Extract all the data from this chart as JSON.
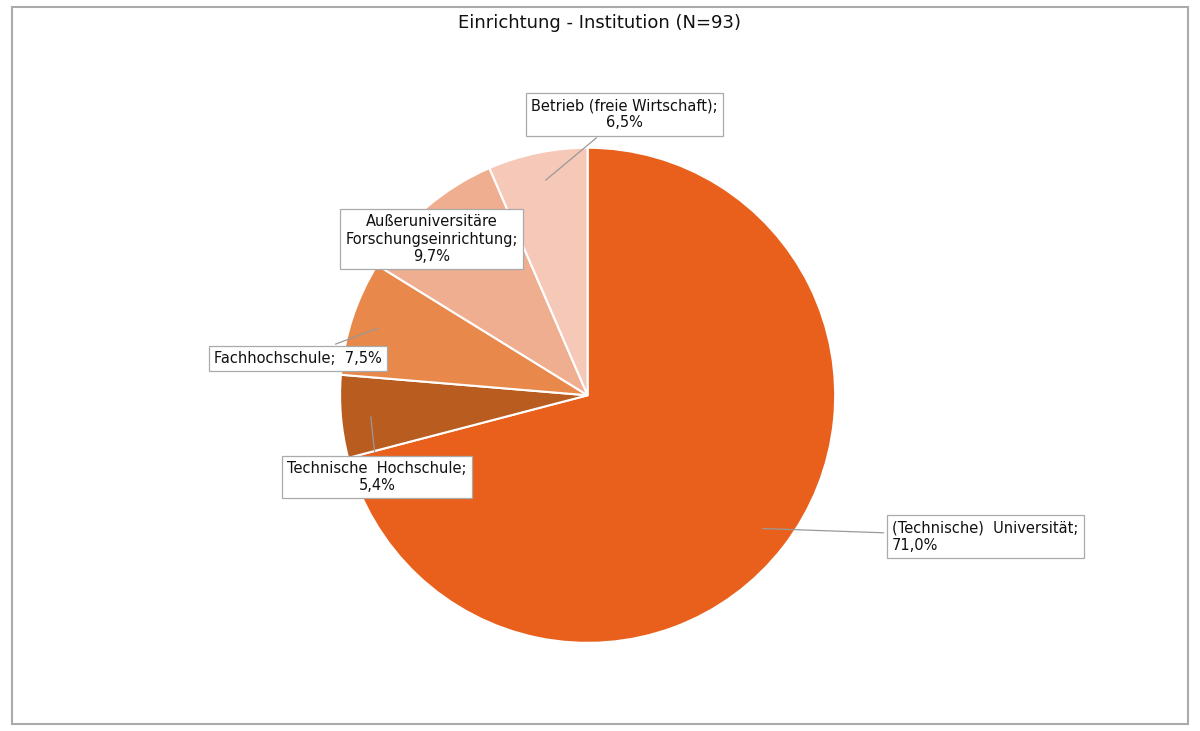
{
  "title": "Einrichtung - Institution (N=93)",
  "slices": [
    {
      "label": "(Technische)  Universität;\n71,0%",
      "value": 71.0,
      "color": "#E8601C"
    },
    {
      "label": "Technische  Hochschule;\n5,4%",
      "value": 5.4,
      "color": "#B85C20"
    },
    {
      "label": "Fachhochschule;  7,5%",
      "value": 7.5,
      "color": "#E8884A"
    },
    {
      "label": "Außeruniversitäre\nForschungseinrichtung;\n9,7%",
      "value": 9.7,
      "color": "#F0AE90"
    },
    {
      "label": "Betrieb (freie Wirtschaft);\n6,5%",
      "value": 6.5,
      "color": "#F5C8B8"
    }
  ],
  "background_color": "#ffffff",
  "title_fontsize": 13,
  "label_fontsize": 10.5,
  "startangle": 90
}
